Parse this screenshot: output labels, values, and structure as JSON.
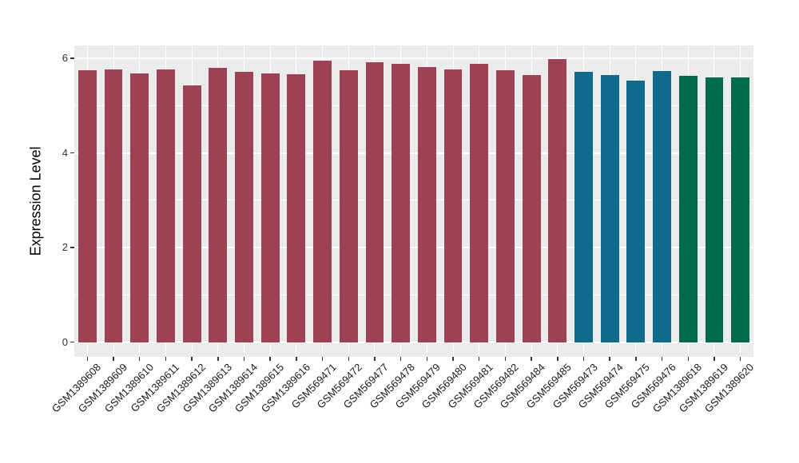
{
  "chart_data": {
    "type": "bar",
    "title": "",
    "xlabel": "",
    "ylabel": "Expression Level",
    "categories": [
      "GSM1389608",
      "GSM1389609",
      "GSM1389610",
      "GSM1389611",
      "GSM1389612",
      "GSM1389613",
      "GSM1389614",
      "GSM1389615",
      "GSM1389616",
      "GSM569471",
      "GSM569472",
      "GSM569477",
      "GSM569478",
      "GSM569479",
      "GSM569480",
      "GSM569481",
      "GSM569482",
      "GSM569484",
      "GSM569485",
      "GSM569473",
      "GSM569474",
      "GSM569475",
      "GSM569476",
      "GSM1389618",
      "GSM1389619",
      "GSM1389620"
    ],
    "values": [
      5.75,
      5.77,
      5.68,
      5.76,
      5.43,
      5.79,
      5.71,
      5.68,
      5.66,
      5.95,
      5.75,
      5.91,
      5.89,
      5.81,
      5.76,
      5.89,
      5.75,
      5.64,
      5.98,
      5.72,
      5.64,
      5.52,
      5.73,
      5.63,
      5.59,
      5.59
    ],
    "bar_groups": [
      "s1",
      "s1",
      "s1",
      "s1",
      "s1",
      "s1",
      "s1",
      "s1",
      "s1",
      "s1",
      "s1",
      "s1",
      "s1",
      "s1",
      "s1",
      "s1",
      "s1",
      "s1",
      "s1",
      "s2",
      "s2",
      "s2",
      "s2",
      "s3",
      "s3",
      "s3"
    ],
    "palette": {
      "s1": "#9c4254",
      "s2": "#0f6a8b",
      "s3": "#006b4a"
    },
    "yticks": [
      0,
      2,
      4,
      6
    ],
    "ytick_labels": [
      "0",
      "2",
      "4",
      "6"
    ],
    "minor_gridlines": [
      1,
      3,
      5
    ],
    "ylim": [
      -0.31,
      6.27
    ],
    "bar_width_ratio": 0.7,
    "x_tick_rotation_deg": 45,
    "legend": "none",
    "style": {
      "plot_background": "#ebebeb",
      "grid_color": "#ffffff",
      "tick_color": "#333333",
      "axis_text_color": "#333333",
      "axis_title_color": "#000000"
    }
  }
}
